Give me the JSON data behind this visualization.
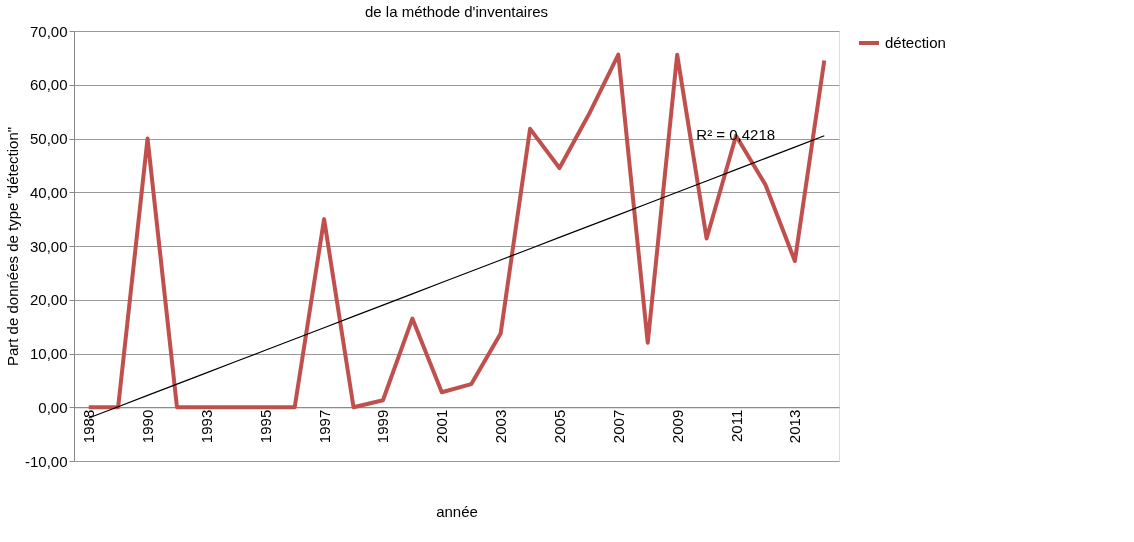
{
  "chart_data": {
    "type": "line",
    "title": "de la méthode d'inventaires",
    "xlabel": "année",
    "ylabel": "Part de données de type \"détection\"",
    "categories": [
      "1988",
      null,
      "1990",
      null,
      "1993",
      null,
      "1995",
      null,
      "1997",
      null,
      "1999",
      null,
      "2001",
      null,
      "2003",
      null,
      "2005",
      null,
      "2007",
      null,
      "2009",
      null,
      "2011",
      null,
      "2013",
      null
    ],
    "series": [
      {
        "name": "détection",
        "color": "#c0504d",
        "values": [
          0,
          0,
          50,
          0,
          0,
          0,
          0,
          0,
          35,
          0,
          1.3,
          16.5,
          2.8,
          4.3,
          13.7,
          51.8,
          44.5,
          54.5,
          65.6,
          12,
          65.6,
          31.4,
          50.5,
          41.4,
          27.2,
          64.5
        ]
      },
      {
        "type": "line",
        "color": "#000000",
        "values": [
          -2.0,
          0.1,
          2.2,
          4.3,
          6.4,
          8.5,
          10.6,
          12.7,
          14.8,
          16.9,
          19.0,
          21.1,
          23.2,
          25.3,
          27.4,
          29.5,
          31.6,
          33.7,
          35.8,
          37.9,
          40.0,
          42.1,
          44.2,
          46.3,
          48.4,
          50.5
        ]
      }
    ],
    "annotations": [
      "R² = 0,4218"
    ],
    "ylim": [
      -10,
      70
    ],
    "yticks": [
      {
        "value": -10,
        "label": "-10,00"
      },
      {
        "value": 0,
        "label": "0,00"
      },
      {
        "value": 10,
        "label": "10,00"
      },
      {
        "value": 20,
        "label": "20,00"
      },
      {
        "value": 30,
        "label": "30,00"
      },
      {
        "value": 40,
        "label": "40,00"
      },
      {
        "value": 50,
        "label": "50,00"
      },
      {
        "value": 60,
        "label": "60,00"
      },
      {
        "value": 70,
        "label": "70,00"
      }
    ],
    "grid": "y",
    "legend": "right",
    "marker": "none",
    "line_style": "solid"
  }
}
